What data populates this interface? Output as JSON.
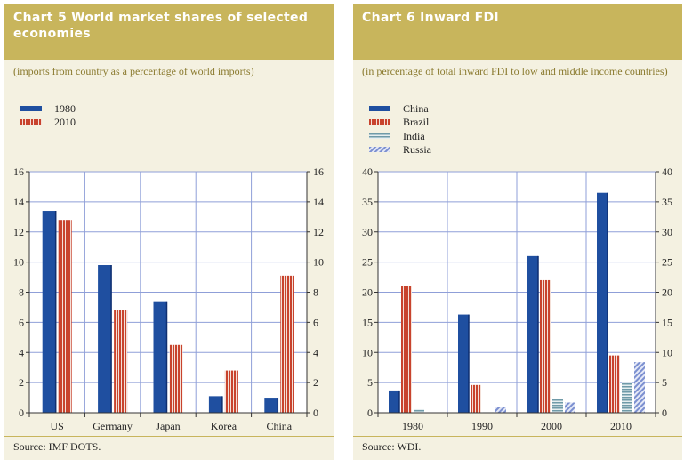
{
  "chart5": {
    "title": "Chart 5 World market shares of selected economies",
    "subtitle": "(imports from country as a percentage of world imports)",
    "source": "Source: IMF DOTS.",
    "legend": [
      "1980",
      "2010"
    ]
  },
  "chart6": {
    "title": "Chart 6 Inward FDI",
    "subtitle": "(in percentage of total inward FDI to low and middle income countries)",
    "source": "Source: WDI.",
    "legend": [
      "China",
      "Brazil",
      "India",
      "Russia"
    ]
  },
  "colors": {
    "panel_bg": "#f4f1e1",
    "header": "#c8b55c",
    "blue": "#1f4fa0",
    "red": "#c8432d",
    "teal": "#6f9aa8",
    "light_blue": "#7b8fd0",
    "grid": "#8f9fd8"
  },
  "chart_data": [
    {
      "type": "bar",
      "title": "Chart 5 World market shares of selected economies",
      "subtitle": "(imports from country as a percentage of world imports)",
      "categories": [
        "US",
        "Germany",
        "Japan",
        "Korea",
        "China"
      ],
      "series": [
        {
          "name": "1980",
          "values": [
            13.4,
            9.8,
            7.4,
            1.1,
            1.0
          ],
          "color": "#1f4fa0",
          "pattern": "solid"
        },
        {
          "name": "2010",
          "values": [
            12.8,
            6.8,
            4.5,
            2.8,
            9.1
          ],
          "color": "#c8432d",
          "pattern": "vertical-stripes"
        }
      ],
      "ylim": [
        0,
        16
      ],
      "yticks": [
        0,
        2,
        4,
        6,
        8,
        10,
        12,
        14,
        16
      ],
      "secondary_axis": true,
      "grid": true,
      "legend_position": "top-left",
      "source": "Source: IMF DOTS."
    },
    {
      "type": "bar",
      "title": "Chart 6 Inward FDI",
      "subtitle": "(in percentage of total inward FDI to low and middle income countries)",
      "categories": [
        "1980",
        "1990",
        "2000",
        "2010"
      ],
      "series": [
        {
          "name": "China",
          "values": [
            3.7,
            16.3,
            26.0,
            36.5
          ],
          "color": "#1f4fa0",
          "pattern": "solid"
        },
        {
          "name": "Brazil",
          "values": [
            21.0,
            4.6,
            22.0,
            9.5
          ],
          "color": "#c8432d",
          "pattern": "vertical-stripes"
        },
        {
          "name": "India",
          "values": [
            0.6,
            0.1,
            2.3,
            5.0
          ],
          "color": "#6f9aa8",
          "pattern": "horizontal-stripes"
        },
        {
          "name": "Russia",
          "values": [
            0,
            1.0,
            1.7,
            8.4
          ],
          "color": "#7b8fd0",
          "pattern": "diagonal-stripes"
        }
      ],
      "ylim": [
        0,
        40
      ],
      "yticks": [
        0,
        5,
        10,
        15,
        20,
        25,
        30,
        35,
        40
      ],
      "secondary_axis": true,
      "grid": true,
      "legend_position": "top-left",
      "source": "Source: WDI."
    }
  ]
}
